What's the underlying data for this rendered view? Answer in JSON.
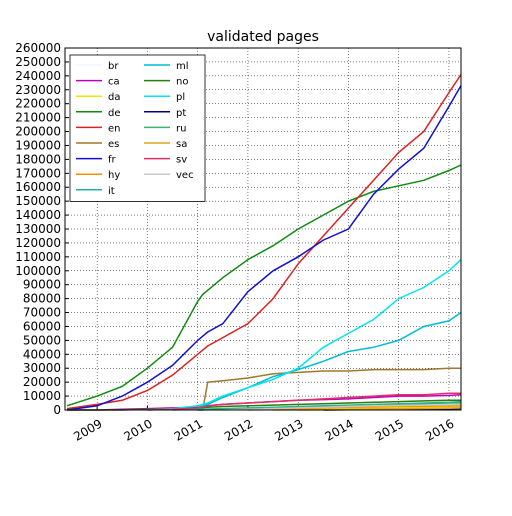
{
  "chart_data": {
    "type": "line",
    "title": "validated pages",
    "x": [
      2008.4,
      2009,
      2009.5,
      2010,
      2010.5,
      2011,
      2011.1,
      2011.2,
      2011.5,
      2012,
      2012.5,
      2013,
      2013.5,
      2014,
      2014.5,
      2015,
      2015.5,
      2016,
      2016.24
    ],
    "xlim": [
      2008.36,
      2016.24
    ],
    "xticks": [
      2009,
      2010,
      2011,
      2012,
      2013,
      2014,
      2015,
      2016
    ],
    "ylim": [
      0,
      260000
    ],
    "yticks": [
      0,
      10000,
      20000,
      30000,
      40000,
      50000,
      60000,
      70000,
      80000,
      90000,
      100000,
      110000,
      120000,
      130000,
      140000,
      150000,
      160000,
      170000,
      180000,
      190000,
      200000,
      210000,
      220000,
      230000,
      240000,
      250000,
      260000
    ],
    "grid": true,
    "legend": "upper left",
    "series": [
      {
        "name": "br",
        "color": "#eef6ff",
        "values": [
          null,
          null,
          null,
          null,
          null,
          null,
          null,
          null,
          null,
          null,
          null,
          null,
          null,
          0,
          100,
          200,
          300,
          400,
          500
        ]
      },
      {
        "name": "ca",
        "color": "#c000c0",
        "values": [
          0,
          0,
          500,
          1000,
          1500,
          2000,
          2500,
          3000,
          4000,
          5000,
          6000,
          7000,
          7500,
          8000,
          9000,
          10000,
          10000,
          10500,
          11000
        ]
      },
      {
        "name": "da",
        "color": "#e8e800",
        "values": [
          null,
          null,
          null,
          null,
          null,
          null,
          null,
          null,
          null,
          null,
          0,
          300,
          600,
          900,
          1200,
          1500,
          1700,
          1900,
          2000
        ]
      },
      {
        "name": "de",
        "color": "#108a10",
        "values": [
          3000,
          10000,
          17000,
          30000,
          45000,
          78000,
          83000,
          86000,
          95000,
          108000,
          118000,
          130000,
          140000,
          150000,
          157000,
          161000,
          165000,
          172000,
          176000
        ]
      },
      {
        "name": "en",
        "color": "#e02020",
        "values": [
          1000,
          4000,
          7000,
          14000,
          25000,
          40000,
          43000,
          46000,
          52000,
          62000,
          80000,
          105000,
          125000,
          145000,
          165000,
          185000,
          200000,
          228000,
          241000
        ]
      },
      {
        "name": "es",
        "color": "#a0782d",
        "values": [
          null,
          null,
          null,
          null,
          null,
          0,
          0,
          20000,
          21000,
          23000,
          26000,
          27000,
          28000,
          28000,
          29000,
          29000,
          29000,
          30000,
          30000
        ]
      },
      {
        "name": "fr",
        "color": "#1010d0",
        "values": [
          0,
          3000,
          10000,
          20000,
          32000,
          50000,
          53000,
          56000,
          62000,
          85000,
          100000,
          110000,
          122000,
          130000,
          155000,
          173000,
          188000,
          218000,
          233000
        ]
      },
      {
        "name": "hy",
        "color": "#ff8c00",
        "values": [
          null,
          null,
          null,
          null,
          null,
          null,
          null,
          null,
          null,
          0,
          500,
          1000,
          1500,
          2000,
          2200,
          2500,
          2700,
          2900,
          3000
        ]
      },
      {
        "name": "it",
        "color": "#20b2aa",
        "values": [
          null,
          null,
          null,
          null,
          0,
          500,
          600,
          700,
          1000,
          1500,
          2000,
          2500,
          3000,
          3500,
          4000,
          4500,
          5000,
          5500,
          6000
        ]
      },
      {
        "name": "ml",
        "color": "#00bcd8",
        "values": [
          null,
          null,
          null,
          null,
          null,
          2000,
          3000,
          4000,
          9000,
          16000,
          24000,
          29000,
          35000,
          42000,
          45000,
          50000,
          60000,
          64000,
          70000
        ]
      },
      {
        "name": "no",
        "color": "#2e7d0a",
        "values": [
          0,
          0,
          0,
          500,
          1000,
          1500,
          1700,
          2000,
          2500,
          3000,
          3500,
          4000,
          4500,
          5000,
          5500,
          6000,
          6500,
          7000,
          7000
        ]
      },
      {
        "name": "pl",
        "color": "#00e5ee",
        "values": [
          null,
          null,
          null,
          0,
          1000,
          3000,
          4000,
          5000,
          10000,
          16000,
          22000,
          30000,
          45000,
          55000,
          65000,
          80000,
          88000,
          100000,
          108000
        ]
      },
      {
        "name": "pt",
        "color": "#000080",
        "values": [
          null,
          null,
          null,
          null,
          null,
          null,
          null,
          null,
          null,
          null,
          null,
          null,
          0,
          200,
          400,
          600,
          800,
          900,
          1000
        ]
      },
      {
        "name": "ru",
        "color": "#3cb371",
        "values": [
          null,
          null,
          null,
          null,
          null,
          0,
          100,
          200,
          500,
          1000,
          1500,
          2000,
          2500,
          3000,
          3500,
          4000,
          4500,
          5000,
          5000
        ]
      },
      {
        "name": "sa",
        "color": "#daa520",
        "values": [
          null,
          null,
          null,
          null,
          null,
          null,
          null,
          null,
          null,
          null,
          null,
          0,
          200,
          400,
          700,
          900,
          1100,
          1300,
          1500
        ]
      },
      {
        "name": "sv",
        "color": "#e0306a",
        "values": [
          null,
          null,
          null,
          0,
          500,
          1500,
          2000,
          3000,
          4000,
          5000,
          6000,
          7000,
          8000,
          9000,
          10000,
          11000,
          11000,
          12000,
          12000
        ]
      },
      {
        "name": "vec",
        "color": "#c8c8c8",
        "values": [
          null,
          null,
          null,
          null,
          null,
          null,
          null,
          null,
          0,
          500,
          1000,
          1500,
          2000,
          2500,
          3000,
          3200,
          3500,
          3800,
          4000
        ]
      }
    ]
  }
}
